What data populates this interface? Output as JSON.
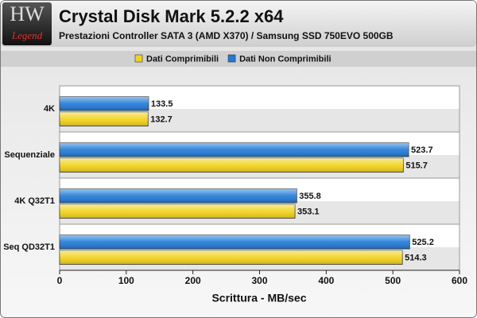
{
  "logo": {
    "main": "HW",
    "sub": "Legend"
  },
  "chart_data": {
    "type": "bar",
    "orientation": "horizontal",
    "title": "Crystal Disk Mark 5.2.2 x64",
    "subtitle": "Prestazioni Controller SATA 3 (AMD X370) / Samsung SSD 750EVO 500GB",
    "x_label": "Scrittura - MB/sec",
    "categories": [
      "4K",
      "Sequenziale",
      "4K Q32T1",
      "Seq QD32T1"
    ],
    "series": [
      {
        "name": "Dati Comprimibili",
        "color": "#f2d21a",
        "values": [
          132.7,
          515.7,
          353.1,
          514.3
        ]
      },
      {
        "name": "Dati Non Comprimibili",
        "color": "#1f7ad8",
        "values": [
          133.5,
          523.7,
          355.8,
          525.2
        ]
      }
    ],
    "xlim": [
      0,
      600
    ],
    "xticks": [
      0,
      100,
      200,
      300,
      400,
      500,
      600
    ],
    "grid": false
  }
}
